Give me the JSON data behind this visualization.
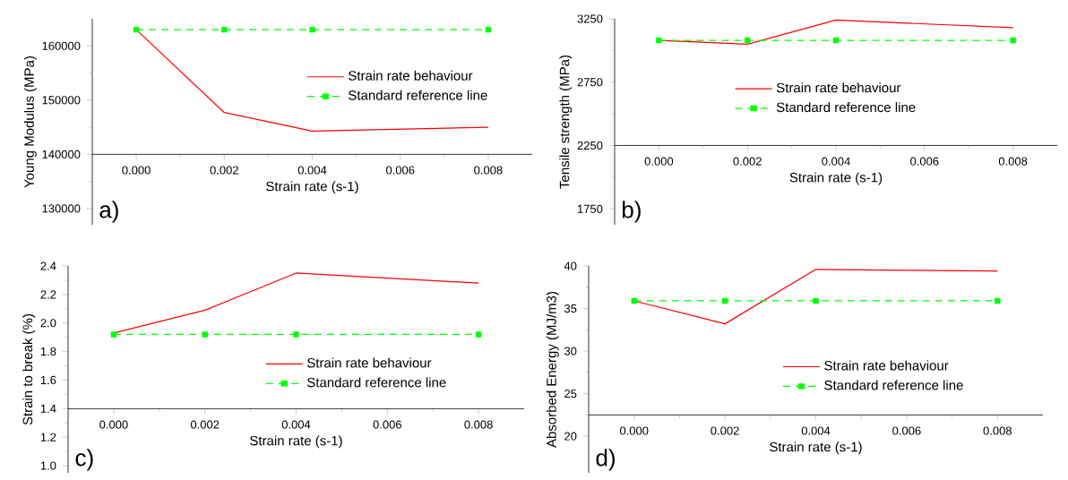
{
  "chart_data": [
    {
      "type": "line",
      "xlabel": "Strain rate (s-1)",
      "ylabel": "Young Modulus (MPa)",
      "annotations": [
        "a)"
      ],
      "x": [
        0,
        0.002,
        0.004,
        0.008
      ],
      "xlim": [
        -0.001,
        0.009
      ],
      "ylim": [
        127000,
        165000
      ],
      "xticks": [
        {
          "value": 0,
          "label": "0.000"
        },
        {
          "value": 0.002,
          "label": "0.002"
        },
        {
          "value": 0.004,
          "label": "0.004"
        },
        {
          "value": 0.006,
          "label": "0.006"
        },
        {
          "value": 0.008,
          "label": "0.008"
        }
      ],
      "yticks": [
        130000,
        140000,
        150000,
        160000
      ],
      "legend": "right",
      "series": [
        {
          "name": "Strain rate behaviour",
          "color": "#ff0000",
          "values": [
            163000,
            147700,
            144300,
            145000
          ],
          "line_style": "solid",
          "marker": "none"
        },
        {
          "name": "Standard reference line",
          "color": "#00ff00",
          "values": [
            163000,
            163000,
            163000,
            163000
          ],
          "line_style": "dashed",
          "marker": "square"
        }
      ]
    },
    {
      "type": "line",
      "xlabel": "Strain rate (s-1)",
      "ylabel": "Tensile strength (MPa)",
      "annotations": [
        "b)"
      ],
      "x": [
        0,
        0.002,
        0.004,
        0.008
      ],
      "xlim": [
        -0.001,
        0.009
      ],
      "ylim": [
        1625,
        3250
      ],
      "xticks": [
        {
          "value": 0,
          "label": "0.000"
        },
        {
          "value": 0.002,
          "label": "0.002"
        },
        {
          "value": 0.004,
          "label": "0.004"
        },
        {
          "value": 0.006,
          "label": "0.006"
        },
        {
          "value": 0.008,
          "label": "0.008"
        }
      ],
      "yticks": [
        1750,
        2250,
        2750,
        3250
      ],
      "legend": "center",
      "series": [
        {
          "name": "Strain rate behaviour",
          "color": "#ff0000",
          "values": [
            3080,
            3050,
            3240,
            3180
          ],
          "line_style": "solid",
          "marker": "none"
        },
        {
          "name": "Standard reference line",
          "color": "#00ff00",
          "values": [
            3080,
            3080,
            3080,
            3080
          ],
          "line_style": "dashed",
          "marker": "square"
        }
      ]
    },
    {
      "type": "line",
      "xlabel": "Strain rate (s-1)",
      "ylabel": "Strain to break (%)",
      "annotations": [
        "c)"
      ],
      "x": [
        0,
        0.002,
        0.004,
        0.008
      ],
      "xlim": [
        -0.001,
        0.009
      ],
      "ylim": [
        0.95,
        2.4
      ],
      "xticks": [
        {
          "value": 0,
          "label": "0.000"
        },
        {
          "value": 0.002,
          "label": "0.002"
        },
        {
          "value": 0.004,
          "label": "0.004"
        },
        {
          "value": 0.006,
          "label": "0.006"
        },
        {
          "value": 0.008,
          "label": "0.008"
        }
      ],
      "yticks": [
        {
          "value": 1,
          "label": "1.0"
        },
        {
          "value": 1.2,
          "label": "1.2"
        },
        {
          "value": 1.4,
          "label": "1.4"
        },
        {
          "value": 1.6,
          "label": "1.6"
        },
        {
          "value": 1.8,
          "label": "1.8"
        },
        {
          "value": 2,
          "label": "2.0"
        },
        {
          "value": 2.2,
          "label": "2.2"
        },
        {
          "value": 2.4,
          "label": "2.4"
        }
      ],
      "legend": "bottom right",
      "series": [
        {
          "name": "Strain rate behaviour",
          "color": "#ff0000",
          "values": [
            1.93,
            2.09,
            2.35,
            2.28
          ],
          "line_style": "solid",
          "marker": "none"
        },
        {
          "name": "Standard reference line",
          "color": "#00ff00",
          "values": [
            1.92,
            1.92,
            1.92,
            1.92
          ],
          "line_style": "dashed",
          "marker": "square"
        }
      ]
    },
    {
      "type": "line",
      "xlabel": "Strain rate (s-1)",
      "ylabel": "Absorbed Energy (MJ/m3)",
      "annotations": [
        "d)"
      ],
      "x": [
        0,
        0.002,
        0.004,
        0.008
      ],
      "xlim": [
        -0.001,
        0.009
      ],
      "ylim": [
        15.7,
        40
      ],
      "xticks": [
        {
          "value": 0,
          "label": "0.000"
        },
        {
          "value": 0.002,
          "label": "0.002"
        },
        {
          "value": 0.004,
          "label": "0.004"
        },
        {
          "value": 0.006,
          "label": "0.006"
        },
        {
          "value": 0.008,
          "label": "0.008"
        }
      ],
      "yticks": [
        20,
        25,
        30,
        35,
        40
      ],
      "legend": "bottom",
      "series": [
        {
          "name": "Strain rate behaviour",
          "color": "#ff0000",
          "values": [
            35.9,
            33.2,
            39.6,
            39.4
          ],
          "line_style": "solid",
          "marker": "none"
        },
        {
          "name": "Standard reference line",
          "color": "#00ff00",
          "values": [
            35.9,
            35.9,
            35.9,
            35.9
          ],
          "line_style": "dashed",
          "marker": "square"
        }
      ]
    }
  ]
}
